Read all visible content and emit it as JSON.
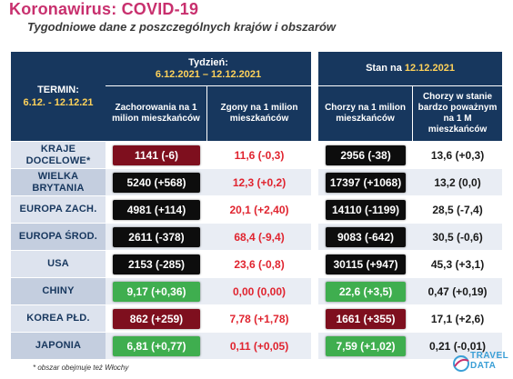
{
  "header": {
    "title": "Koronawirus: COVID-19",
    "subtitle": "Tygodniowe dane z poszczególnych krajów i obszarów"
  },
  "table": {
    "termin_label": "TERMIN:",
    "termin_value": "6.12. - 12.12.21",
    "week_label": "Tydzień:",
    "week_value": "6.12.2021 – 12.12.2021",
    "state_label": "Stan na",
    "state_value": "12.12.2021",
    "col1": "Zachorowania na 1 milion mieszkańców",
    "col2": "Zgony na 1 milion mieszkańców",
    "col3": "Chorzy na 1 milion mieszkańców",
    "col4": "Chorzy w stanie bardzo poważnym na 1 M mieszkańców",
    "rows": [
      {
        "country": "KRAJE DOCELOWE*",
        "v1": "1141 (-6)",
        "v2": "11,6 (-0,3)",
        "v3": "2956 (-38)",
        "v4": "13,6 (+0,3)"
      },
      {
        "country": "WIELKA BRYTANIA",
        "v1": "5240 (+568)",
        "v2": "12,3 (+0,2)",
        "v3": "17397 (+1068)",
        "v4": "13,2 (0,0)"
      },
      {
        "country": "EUROPA ZACH.",
        "v1": "4981 (+114)",
        "v2": "20,1 (+2,40)",
        "v3": "14110 (-1199)",
        "v4": "28,5 (-7,4)"
      },
      {
        "country": "EUROPA ŚROD.",
        "v1": "2611 (-378)",
        "v2": "68,4 (-9,4)",
        "v3": "9083 (-642)",
        "v4": "30,5 (-0,6)"
      },
      {
        "country": "USA",
        "v1": "2153 (-285)",
        "v2": "23,6 (-0,8)",
        "v3": "30115 (+947)",
        "v4": "45,3 (+3,1)"
      },
      {
        "country": "CHINY",
        "v1": "9,17 (+0,36)",
        "v2": "0,00 (0,00)",
        "v3": "22,6 (+3,5)",
        "v4": "0,47 (+0,19)"
      },
      {
        "country": "KOREA PŁD.",
        "v1": "862 (+259)",
        "v2": "7,78 (+1,78)",
        "v3": "1661 (+355)",
        "v4": "17,1 (+2,6)"
      },
      {
        "country": "JAPONIA",
        "v1": "6,81 (+0,77)",
        "v2": "0,11 (+0,05)",
        "v3": "7,59 (+1,02)",
        "v4": "0,21 (-0,01)"
      }
    ]
  },
  "footnote": "* obszar obejmuje też Włochy",
  "logo": {
    "line1": "TRAVEL",
    "line2": "DATA"
  },
  "colors": {
    "title": "#c8306e",
    "navy": "#17375e",
    "black_box": "#0d0d0d",
    "red_box": "#7e0f1e",
    "green_box": "#3fae4f",
    "red_text": "#e0242f"
  }
}
